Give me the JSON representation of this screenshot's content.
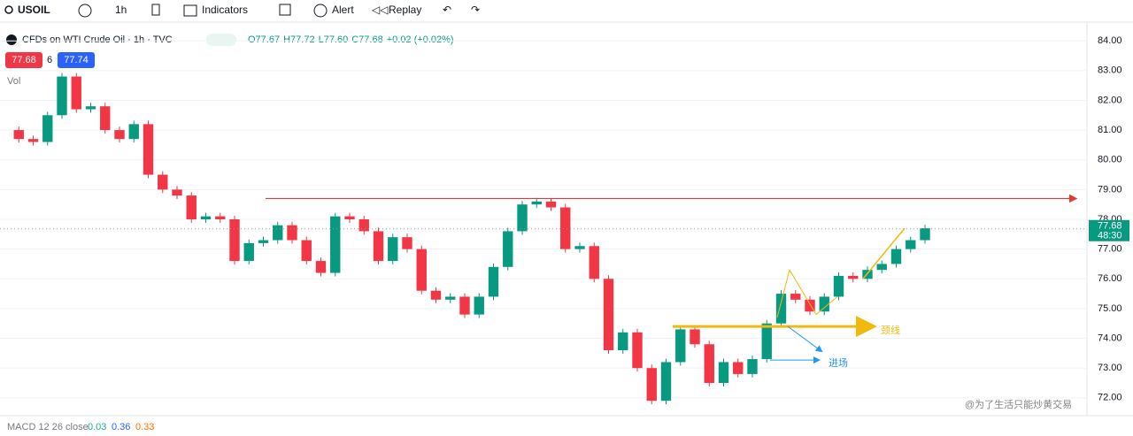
{
  "toolbar": {
    "symbol": "USOIL",
    "interval": "1h",
    "indicators": "Indicators",
    "alert": "Alert",
    "replay": "Replay"
  },
  "legend": {
    "title": "CFDs on WTI Crude Oil · 1h · TVC",
    "ohlc": [
      "O77.67",
      "H77.72",
      "L77.60",
      "C77.68",
      "+0.02 (+0.02%)"
    ],
    "sell": "77.68",
    "spread": "6",
    "buy": "77.74",
    "vol": "Vol"
  },
  "macd": {
    "label": "MACD 12 26 close",
    "values": [
      "0.03",
      "0.36",
      "0.33"
    ]
  },
  "watermark": "@为了生活只能炒黄交易",
  "chart": {
    "type": "candlestick",
    "ylim": [
      84.63,
      71.4
    ],
    "yticks": [
      {
        "value": 84,
        "label": "84.00"
      },
      {
        "value": 83,
        "label": "83.00"
      },
      {
        "value": 82,
        "label": "82.00"
      },
      {
        "value": 81,
        "label": "81.00"
      },
      {
        "value": 80,
        "label": "80.00"
      },
      {
        "value": 79,
        "label": "79.00"
      },
      {
        "value": 78,
        "label": "78.00"
      },
      {
        "value": 77,
        "label": "77.00"
      },
      {
        "value": 76,
        "label": "76.00"
      },
      {
        "value": 75,
        "label": "75.00"
      },
      {
        "value": 74,
        "label": "74.00"
      },
      {
        "value": 73,
        "label": "73.00"
      },
      {
        "value": 72,
        "label": "72.00"
      }
    ],
    "closes": [
      81.0,
      80.7,
      80.6,
      81.5,
      82.8,
      81.7,
      81.8,
      81.0,
      80.7,
      81.2,
      79.5,
      79.0,
      78.8,
      78.0,
      78.1,
      78.0,
      76.6,
      77.2,
      77.3,
      77.8,
      77.3,
      76.6,
      76.2,
      78.1,
      78.0,
      77.6,
      76.6,
      77.4,
      77.0,
      75.6,
      75.3,
      75.4,
      74.8,
      75.4,
      76.4,
      77.6,
      78.5,
      78.6,
      78.4,
      77.0,
      77.1,
      76.0,
      73.6,
      74.2,
      73.0,
      71.9,
      73.2,
      74.3,
      73.8,
      72.5,
      73.2,
      72.8,
      73.3,
      74.5,
      75.5,
      75.3,
      74.9,
      75.4,
      76.1,
      76.0,
      76.3,
      76.5,
      77.0,
      77.3,
      77.7
    ],
    "up_color": "#089981",
    "down_color": "#f23645",
    "resistance": 78.7,
    "neckline": 74.4,
    "neckline_label": "颈线",
    "entry_label": "进场",
    "last_price": 77.68,
    "countdown": "48:30"
  }
}
